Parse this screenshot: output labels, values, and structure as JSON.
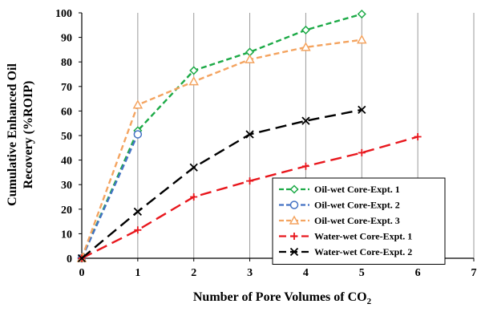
{
  "chart_data": {
    "type": "line",
    "title": "",
    "xlabel": "Number of Pore Volumes of CO",
    "xlabel_subscript": "2",
    "ylabel_line1": "Cumulative Enhanced Oil",
    "ylabel_line2": "Recovery (%ROIP)",
    "xlim": [
      0,
      7
    ],
    "ylim": [
      0,
      100
    ],
    "x_ticks": [
      0,
      1,
      2,
      3,
      4,
      5,
      6,
      7
    ],
    "y_ticks": [
      0,
      10,
      20,
      30,
      40,
      50,
      60,
      70,
      80,
      90,
      100
    ],
    "grid": {
      "x": true,
      "y": false
    },
    "legend_position": "bottom-right",
    "series": [
      {
        "name": "Oil-wet Core-Expt. 1",
        "color": "#1daa47",
        "marker": "diamond",
        "dash": "dashed",
        "x": [
          0,
          1,
          2,
          3,
          4,
          5
        ],
        "y": [
          0,
          52,
          76.5,
          84,
          93,
          99.5
        ]
      },
      {
        "name": "Oil-wet Core-Expt. 2",
        "color": "#4472c4",
        "marker": "circle",
        "dash": "dashed",
        "x": [
          0,
          1
        ],
        "y": [
          0,
          50.5
        ]
      },
      {
        "name": "Oil-wet Core-Expt. 3",
        "color": "#f4a460",
        "marker": "triangle",
        "dash": "dashed",
        "x": [
          0,
          1,
          2,
          3,
          4,
          5
        ],
        "y": [
          0,
          62.5,
          72,
          81,
          86,
          89
        ]
      },
      {
        "name": "Water-wet Core-Expt. 1",
        "color": "#e8171d",
        "marker": "plus",
        "dash": "longdash",
        "x": [
          0,
          1,
          2,
          3,
          4,
          5,
          6
        ],
        "y": [
          0,
          11.5,
          25,
          31.5,
          37.5,
          43,
          49.5
        ]
      },
      {
        "name": "Water-wet Core-Expt. 2",
        "color": "#000000",
        "marker": "x",
        "dash": "longdash",
        "x": [
          0,
          1,
          2,
          3,
          4,
          5
        ],
        "y": [
          0,
          19,
          37,
          50.5,
          56,
          60.5
        ]
      }
    ]
  }
}
